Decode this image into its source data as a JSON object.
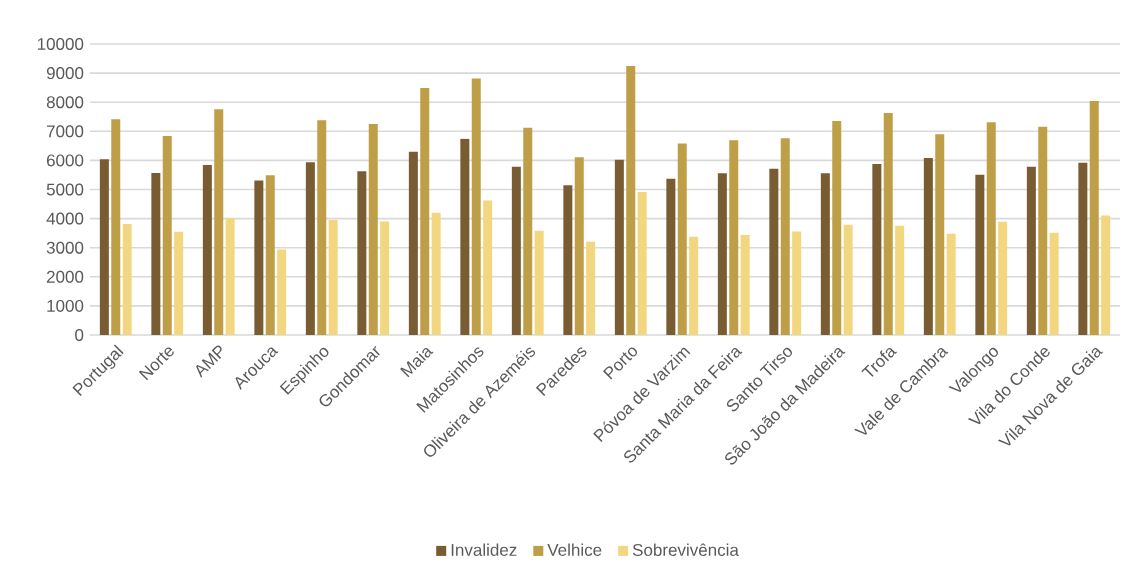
{
  "chart_data": {
    "type": "bar",
    "categories": [
      "Portugal",
      "Norte",
      "AMP",
      "Arouca",
      "Espinho",
      "Gondomar",
      "Maia",
      "Matosinhos",
      "Oliveira de Azeméis",
      "Paredes",
      "Porto",
      "Póvoa de Varzim",
      "Santa Maria da Feira",
      "Santo Tirso",
      "São João da Madeira",
      "Trofa",
      "Vale de Cambra",
      "Valongo",
      "Vila do Conde",
      "Vila Nova de Gaia"
    ],
    "series": [
      {
        "name": "Invalidez",
        "color": "#7a5c32",
        "values": [
          6040,
          5570,
          5840,
          5310,
          5940,
          5630,
          6300,
          6740,
          5780,
          5150,
          6020,
          5370,
          5560,
          5710,
          5560,
          5880,
          6080,
          5510,
          5780,
          5920
        ]
      },
      {
        "name": "Velhice",
        "color": "#bf9e48",
        "values": [
          7410,
          6840,
          7760,
          5490,
          7380,
          7250,
          8490,
          8810,
          7120,
          6110,
          9240,
          6580,
          6690,
          6760,
          7350,
          7630,
          6900,
          7310,
          7160,
          8040
        ]
      },
      {
        "name": "Sobrevivência",
        "color": "#f2d680",
        "values": [
          3810,
          3550,
          4020,
          2940,
          3950,
          3900,
          4200,
          4620,
          3580,
          3200,
          4910,
          3380,
          3440,
          3560,
          3790,
          3750,
          3480,
          3890,
          3510,
          4110
        ]
      }
    ],
    "ylim": [
      0,
      10000
    ],
    "yticks": [
      0,
      1000,
      2000,
      3000,
      4000,
      5000,
      6000,
      7000,
      8000,
      9000,
      10000
    ],
    "grid": "y",
    "legend": "bottom"
  }
}
